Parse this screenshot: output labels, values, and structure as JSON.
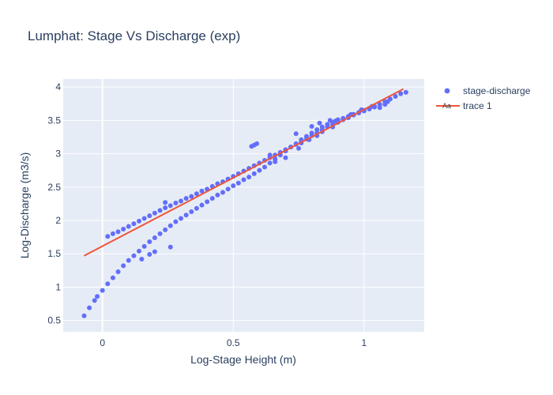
{
  "chart_data": {
    "type": "scatter",
    "title": "Lumphat: Stage Vs Discharge (exp)",
    "xlabel": "Log-Stage Height (m)",
    "ylabel": "Log-Discharge (m3/s)",
    "xlim": [
      -0.15,
      1.23
    ],
    "ylim": [
      0.33,
      4.12
    ],
    "x_ticks": [
      0,
      0.5,
      1
    ],
    "x_tick_labels": [
      "0",
      "0.5",
      "1"
    ],
    "y_ticks": [
      0.5,
      1,
      1.5,
      2,
      2.5,
      3,
      3.5,
      4
    ],
    "y_tick_labels": [
      "0.5",
      "1",
      "1.5",
      "2",
      "2.5",
      "3",
      "3.5",
      "4"
    ],
    "grid": true,
    "legend_position": "top-right",
    "colors": {
      "plot_bg": "#e5ecf6",
      "grid": "#ffffff",
      "scatter": "#636efa",
      "line": "#ef553b",
      "text": "#2a3f5f"
    },
    "series": [
      {
        "name": "stage-discharge",
        "mode": "markers",
        "points": [
          [
            -0.07,
            0.57
          ],
          [
            -0.05,
            0.69
          ],
          [
            -0.03,
            0.8
          ],
          [
            -0.02,
            0.86
          ],
          [
            0.0,
            0.95
          ],
          [
            0.02,
            1.05
          ],
          [
            0.04,
            1.14
          ],
          [
            0.06,
            1.23
          ],
          [
            0.08,
            1.32
          ],
          [
            0.1,
            1.4
          ],
          [
            0.12,
            1.47
          ],
          [
            0.14,
            1.54
          ],
          [
            0.16,
            1.61
          ],
          [
            0.18,
            1.68
          ],
          [
            0.2,
            1.74
          ],
          [
            0.22,
            1.8
          ],
          [
            0.24,
            1.86
          ],
          [
            0.26,
            1.92
          ],
          [
            0.28,
            1.98
          ],
          [
            0.3,
            2.03
          ],
          [
            0.32,
            2.08
          ],
          [
            0.34,
            2.13
          ],
          [
            0.36,
            2.18
          ],
          [
            0.38,
            2.23
          ],
          [
            0.4,
            2.28
          ],
          [
            0.42,
            2.33
          ],
          [
            0.44,
            2.38
          ],
          [
            0.46,
            2.42
          ],
          [
            0.48,
            2.47
          ],
          [
            0.5,
            2.52
          ],
          [
            0.52,
            2.56
          ],
          [
            0.54,
            2.61
          ],
          [
            0.56,
            2.65
          ],
          [
            0.58,
            2.7
          ],
          [
            0.6,
            2.75
          ],
          [
            0.62,
            2.8
          ],
          [
            0.64,
            2.86
          ],
          [
            0.66,
            2.92
          ],
          [
            0.68,
            2.98
          ],
          [
            0.7,
            3.04
          ],
          [
            0.72,
            3.1
          ],
          [
            0.74,
            3.15
          ],
          [
            0.76,
            3.21
          ],
          [
            0.78,
            3.26
          ],
          [
            0.8,
            3.31
          ],
          [
            0.82,
            3.36
          ],
          [
            0.84,
            3.4
          ],
          [
            0.86,
            3.44
          ],
          [
            0.88,
            3.47
          ],
          [
            0.9,
            3.5
          ],
          [
            0.92,
            3.53
          ],
          [
            0.94,
            3.56
          ],
          [
            0.96,
            3.59
          ],
          [
            0.98,
            3.62
          ],
          [
            1.0,
            3.64
          ],
          [
            1.02,
            3.67
          ],
          [
            1.04,
            3.7
          ],
          [
            1.06,
            3.74
          ],
          [
            1.08,
            3.78
          ],
          [
            1.1,
            3.82
          ],
          [
            1.12,
            3.86
          ],
          [
            1.14,
            3.9
          ],
          [
            1.16,
            3.92
          ],
          [
            0.02,
            1.76
          ],
          [
            0.04,
            1.8
          ],
          [
            0.06,
            1.83
          ],
          [
            0.08,
            1.87
          ],
          [
            0.1,
            1.91
          ],
          [
            0.12,
            1.95
          ],
          [
            0.14,
            1.99
          ],
          [
            0.16,
            2.03
          ],
          [
            0.18,
            2.07
          ],
          [
            0.2,
            2.11
          ],
          [
            0.22,
            2.15
          ],
          [
            0.24,
            2.19
          ],
          [
            0.26,
            2.22
          ],
          [
            0.28,
            2.26
          ],
          [
            0.3,
            2.29
          ],
          [
            0.32,
            2.33
          ],
          [
            0.34,
            2.36
          ],
          [
            0.36,
            2.4
          ],
          [
            0.38,
            2.44
          ],
          [
            0.4,
            2.47
          ],
          [
            0.42,
            2.51
          ],
          [
            0.44,
            2.55
          ],
          [
            0.46,
            2.58
          ],
          [
            0.48,
            2.62
          ],
          [
            0.5,
            2.66
          ],
          [
            0.52,
            2.7
          ],
          [
            0.54,
            2.74
          ],
          [
            0.56,
            2.78
          ],
          [
            0.58,
            2.82
          ],
          [
            0.6,
            2.86
          ],
          [
            0.62,
            2.9
          ],
          [
            0.64,
            2.94
          ],
          [
            0.66,
            2.98
          ],
          [
            0.68,
            3.02
          ],
          [
            0.7,
            3.06
          ],
          [
            0.72,
            3.1
          ],
          [
            0.74,
            3.14
          ],
          [
            0.76,
            3.18
          ],
          [
            0.78,
            3.22
          ],
          [
            0.8,
            3.27
          ],
          [
            0.82,
            3.31
          ],
          [
            0.84,
            3.36
          ],
          [
            0.86,
            3.4
          ],
          [
            0.88,
            3.44
          ],
          [
            0.9,
            3.47
          ],
          [
            0.92,
            3.51
          ],
          [
            0.94,
            3.54
          ],
          [
            0.96,
            3.58
          ],
          [
            0.98,
            3.61
          ],
          [
            1.0,
            3.65
          ],
          [
            1.02,
            3.68
          ],
          [
            1.04,
            3.71
          ],
          [
            1.06,
            3.74
          ],
          [
            0.57,
            3.11
          ],
          [
            0.58,
            3.13
          ],
          [
            0.59,
            3.15
          ],
          [
            0.24,
            2.27
          ],
          [
            0.26,
            1.6
          ],
          [
            0.15,
            1.42
          ],
          [
            0.18,
            1.49
          ],
          [
            0.2,
            1.53
          ],
          [
            0.64,
            2.98
          ],
          [
            0.66,
            2.88
          ],
          [
            0.7,
            2.94
          ],
          [
            0.75,
            3.08
          ],
          [
            0.76,
            3.16
          ],
          [
            0.79,
            3.21
          ],
          [
            0.82,
            3.27
          ],
          [
            0.84,
            3.33
          ],
          [
            0.88,
            3.4
          ],
          [
            0.9,
            3.51
          ],
          [
            0.95,
            3.59
          ],
          [
            1.03,
            3.71
          ],
          [
            1.06,
            3.69
          ],
          [
            1.08,
            3.74
          ],
          [
            1.09,
            3.78
          ],
          [
            0.74,
            3.3
          ],
          [
            0.8,
            3.41
          ],
          [
            0.83,
            3.46
          ],
          [
            0.87,
            3.5
          ],
          [
            0.89,
            3.49
          ],
          [
            0.92,
            3.53
          ],
          [
            0.99,
            3.66
          ]
        ]
      },
      {
        "name": "trace 1",
        "mode": "lines",
        "points": [
          [
            -0.07,
            1.47
          ],
          [
            1.15,
            3.97
          ]
        ]
      }
    ]
  }
}
